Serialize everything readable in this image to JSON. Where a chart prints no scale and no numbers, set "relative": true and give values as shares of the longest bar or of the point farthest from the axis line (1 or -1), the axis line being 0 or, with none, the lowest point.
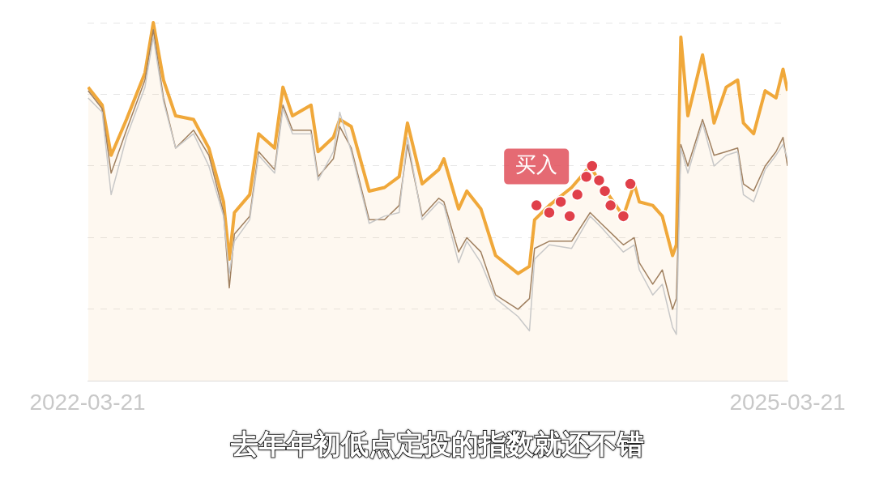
{
  "chart_data": {
    "type": "line",
    "relative": true,
    "grid": "y",
    "x": [
      "2022-03-22",
      "2022-04-13",
      "2022-04-27",
      "2022-05-21",
      "2022-06-19",
      "2022-07-02",
      "2022-07-18",
      "2022-08-06",
      "2022-09-03",
      "2022-09-27",
      "2022-10-20",
      "2022-10-29",
      "2022-11-06",
      "2022-11-30",
      "2022-12-14",
      "2023-01-08",
      "2023-01-21",
      "2023-02-05",
      "2023-03-06",
      "2023-03-17",
      "2023-04-10",
      "2023-04-20",
      "2023-05-08",
      "2023-06-05",
      "2023-06-29",
      "2023-07-22",
      "2023-08-04",
      "2023-08-27",
      "2023-09-22",
      "2023-09-30",
      "2023-10-23",
      "2023-11-05",
      "2023-11-27",
      "2023-12-20",
      "2024-01-24",
      "2024-02-11",
      "2024-02-19",
      "2024-03-13",
      "2024-04-17",
      "2024-05-16",
      "2024-06-02",
      "2024-07-07",
      "2024-07-24",
      "2024-08-01",
      "2024-08-22",
      "2024-09-06",
      "2024-09-22",
      "2024-09-28",
      "2024-10-05",
      "2024-10-16",
      "2024-11-08",
      "2024-11-26",
      "2024-12-15",
      "2025-01-02",
      "2025-01-11",
      "2025-01-27",
      "2025-02-14",
      "2025-03-03",
      "2025-03-14",
      "2025-03-21"
    ],
    "xlim": [
      "2022-03-21",
      "2025-03-21"
    ],
    "xticks": [
      "2022-03-21",
      "2025-03-21"
    ],
    "series": [
      {
        "type": "line",
        "color": "#c8c8c8",
        "values": [
          0.79,
          0.75,
          0.52,
          0.68,
          0.82,
          0.96,
          0.78,
          0.65,
          0.69,
          0.6,
          0.46,
          0.3,
          0.39,
          0.45,
          0.63,
          0.58,
          0.76,
          0.69,
          0.69,
          0.56,
          0.64,
          0.75,
          0.64,
          0.44,
          0.46,
          0.47,
          0.68,
          0.45,
          0.5,
          0.49,
          0.33,
          0.39,
          0.33,
          0.23,
          0.18,
          0.14,
          0.34,
          0.38,
          0.37,
          0.46,
          0.43,
          0.36,
          0.38,
          0.31,
          0.24,
          0.27,
          0.15,
          0.13,
          0.65,
          0.58,
          0.72,
          0.6,
          0.63,
          0.64,
          0.52,
          0.5,
          0.59,
          0.63,
          0.66,
          0.62
        ]
      },
      {
        "type": "line",
        "color": "#a08060",
        "values": [
          0.81,
          0.76,
          0.58,
          0.7,
          0.84,
          0.98,
          0.79,
          0.65,
          0.7,
          0.63,
          0.47,
          0.26,
          0.41,
          0.46,
          0.64,
          0.59,
          0.77,
          0.7,
          0.7,
          0.57,
          0.62,
          0.71,
          0.65,
          0.45,
          0.45,
          0.49,
          0.66,
          0.46,
          0.51,
          0.5,
          0.36,
          0.4,
          0.36,
          0.24,
          0.2,
          0.23,
          0.37,
          0.39,
          0.39,
          0.47,
          0.44,
          0.38,
          0.4,
          0.33,
          0.27,
          0.31,
          0.2,
          0.23,
          0.66,
          0.6,
          0.73,
          0.63,
          0.64,
          0.65,
          0.55,
          0.53,
          0.6,
          0.64,
          0.68,
          0.6
        ]
      },
      {
        "type": "area",
        "color": "#f0a83a",
        "values": [
          0.82,
          0.77,
          0.63,
          0.73,
          0.86,
          1.0,
          0.84,
          0.74,
          0.73,
          0.65,
          0.5,
          0.34,
          0.47,
          0.52,
          0.69,
          0.65,
          0.82,
          0.74,
          0.77,
          0.64,
          0.68,
          0.73,
          0.71,
          0.53,
          0.54,
          0.57,
          0.72,
          0.55,
          0.59,
          0.62,
          0.48,
          0.53,
          0.48,
          0.35,
          0.3,
          0.32,
          0.45,
          0.49,
          0.54,
          0.6,
          0.55,
          0.46,
          0.55,
          0.5,
          0.49,
          0.46,
          0.35,
          0.38,
          0.96,
          0.74,
          0.91,
          0.72,
          0.82,
          0.84,
          0.72,
          0.69,
          0.81,
          0.79,
          0.87,
          0.81
        ]
      },
      {
        "type": "scatter",
        "marker": "circle",
        "color": "#e0404a",
        "x": [
          "2024-02-22",
          "2024-03-13",
          "2024-03-31",
          "2024-04-14",
          "2024-04-26",
          "2024-05-10",
          "2024-05-19",
          "2024-05-30",
          "2024-06-08",
          "2024-06-17",
          "2024-07-07",
          "2024-07-18"
        ],
        "values": [
          0.49,
          0.47,
          0.5,
          0.46,
          0.52,
          0.57,
          0.6,
          0.56,
          0.53,
          0.49,
          0.46,
          0.55
        ]
      }
    ],
    "annotations": [
      {
        "text": "买入",
        "x": "2024-02-22",
        "y": 0.49
      },
      "去年年初低点定投的指数就还不错"
    ]
  }
}
